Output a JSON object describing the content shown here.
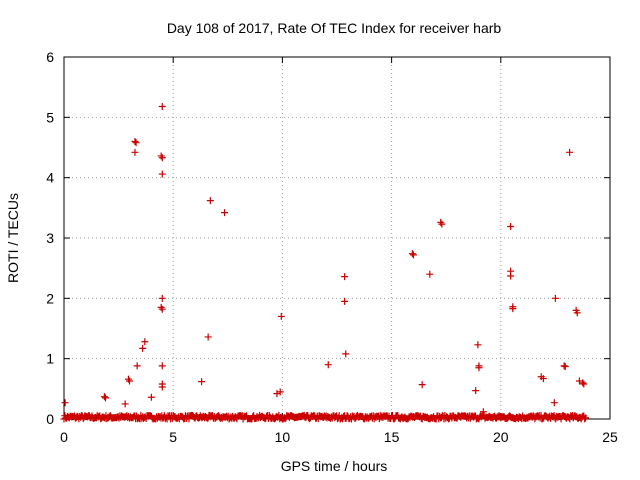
{
  "chart_data": {
    "type": "scatter",
    "title": "Day 108 of 2017, Rate Of TEC Index for receiver harb",
    "xlabel": "GPS time / hours",
    "ylabel": "ROTI / TECUs",
    "xlim": [
      0,
      25
    ],
    "ylim": [
      0,
      6
    ],
    "x_ticks": [
      "0",
      "5",
      "10",
      "15",
      "20",
      "25"
    ],
    "y_ticks": [
      "0",
      "1",
      "2",
      "3",
      "4",
      "5",
      "6"
    ],
    "grid": true,
    "legend": "none",
    "series": [
      {
        "color": "#cc0000",
        "marker": "plus",
        "points": [
          [
            0.05,
            0.27
          ],
          [
            1.85,
            0.37
          ],
          [
            1.9,
            0.35
          ],
          [
            2.8,
            0.25
          ],
          [
            2.95,
            0.66
          ],
          [
            3.0,
            0.63
          ],
          [
            3.25,
            4.6
          ],
          [
            3.3,
            4.58
          ],
          [
            3.25,
            4.42
          ],
          [
            3.35,
            0.88
          ],
          [
            3.6,
            1.17
          ],
          [
            3.7,
            1.28
          ],
          [
            4.0,
            0.36
          ],
          [
            4.5,
            5.18
          ],
          [
            4.45,
            4.36
          ],
          [
            4.5,
            4.33
          ],
          [
            4.5,
            4.06
          ],
          [
            4.5,
            2.0
          ],
          [
            4.45,
            1.85
          ],
          [
            4.5,
            1.82
          ],
          [
            4.5,
            0.88
          ],
          [
            4.5,
            0.58
          ],
          [
            4.5,
            0.53
          ],
          [
            6.3,
            0.62
          ],
          [
            6.6,
            1.36
          ],
          [
            6.7,
            3.62
          ],
          [
            7.35,
            3.42
          ],
          [
            9.75,
            0.42
          ],
          [
            9.9,
            0.45
          ],
          [
            9.95,
            1.7
          ],
          [
            12.1,
            0.9
          ],
          [
            12.85,
            2.36
          ],
          [
            12.85,
            1.95
          ],
          [
            12.9,
            1.08
          ],
          [
            15.95,
            2.74
          ],
          [
            16.0,
            2.72
          ],
          [
            16.4,
            0.57
          ],
          [
            16.75,
            2.4
          ],
          [
            17.25,
            3.26
          ],
          [
            17.3,
            3.23
          ],
          [
            18.85,
            0.47
          ],
          [
            18.95,
            1.23
          ],
          [
            19.0,
            0.88
          ],
          [
            19.0,
            0.85
          ],
          [
            19.2,
            0.12
          ],
          [
            20.45,
            3.19
          ],
          [
            20.45,
            2.45
          ],
          [
            20.45,
            2.37
          ],
          [
            20.55,
            1.86
          ],
          [
            20.55,
            1.83
          ],
          [
            21.85,
            0.7
          ],
          [
            21.95,
            0.67
          ],
          [
            22.45,
            0.27
          ],
          [
            22.5,
            2.0
          ],
          [
            22.9,
            0.88
          ],
          [
            22.95,
            0.87
          ],
          [
            23.15,
            4.42
          ],
          [
            23.45,
            1.8
          ],
          [
            23.5,
            1.76
          ],
          [
            23.6,
            0.63
          ],
          [
            23.75,
            0.6
          ],
          [
            23.8,
            0.58
          ]
        ],
        "baseline": {
          "x_start": 0.0,
          "x_end": 23.9,
          "y_max": 0.06
        }
      }
    ]
  }
}
